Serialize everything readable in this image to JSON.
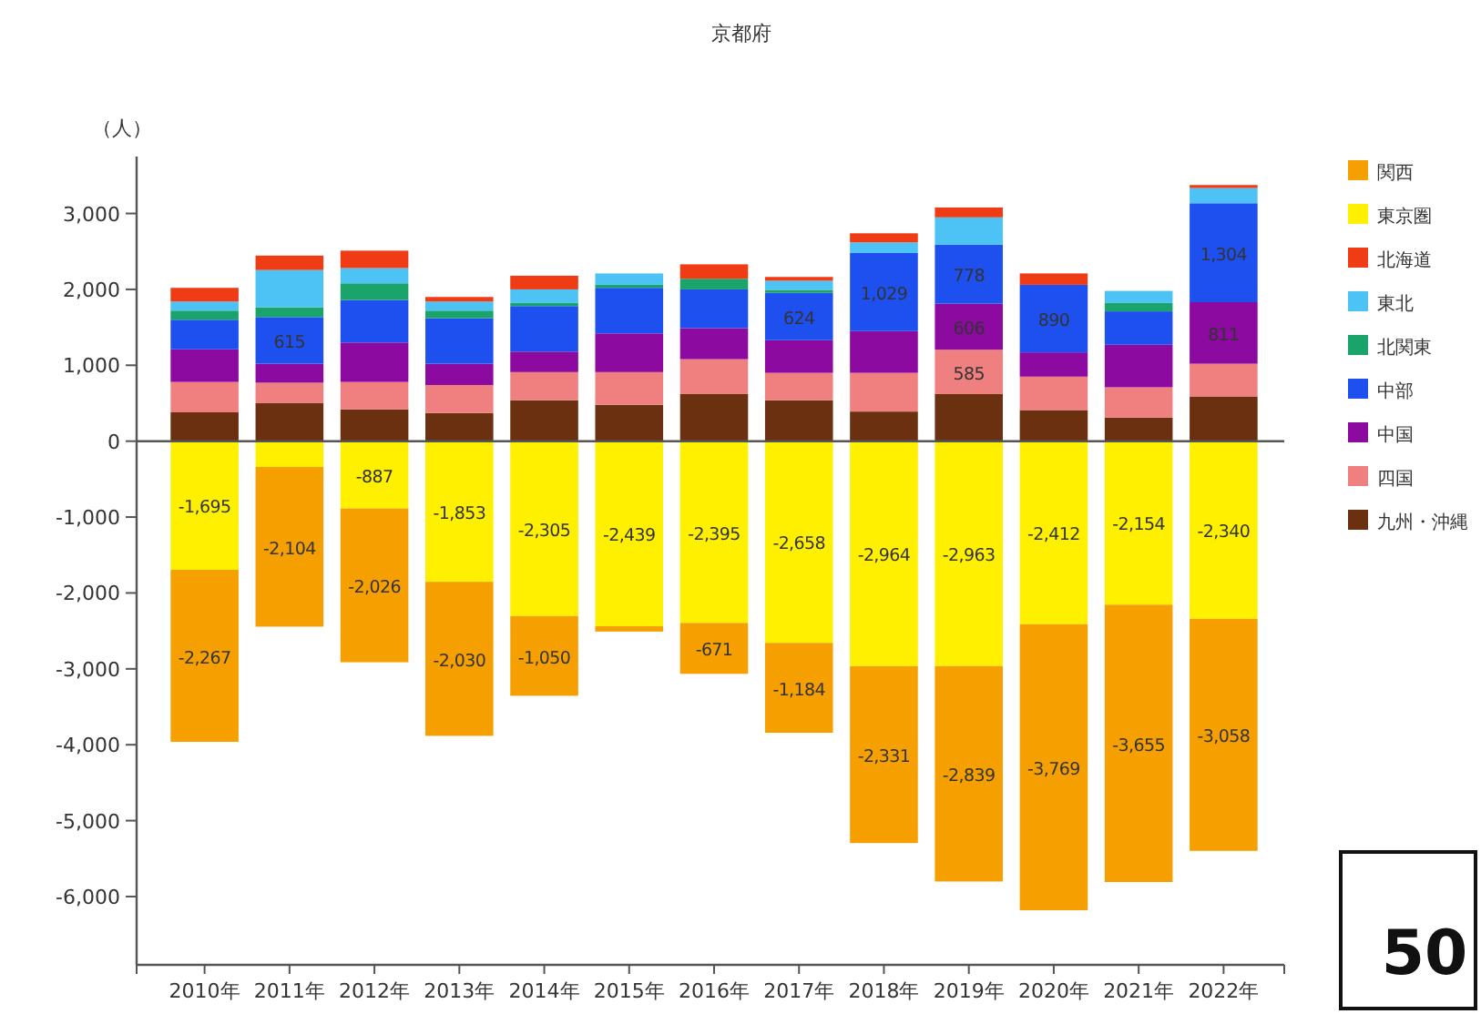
{
  "chart_data": {
    "type": "bar",
    "stacked": true,
    "title": "京都府",
    "ylabel": "（人）",
    "categories": [
      "2010年",
      "2011年",
      "2012年",
      "2013年",
      "2014年",
      "2015年",
      "2016年",
      "2017年",
      "2018年",
      "2019年",
      "2020年",
      "2021年",
      "2022年"
    ],
    "ylim": [
      -6900,
      3750
    ],
    "yticks": [
      {
        "value": -6000,
        "label": "-6,000"
      },
      {
        "value": -5000,
        "label": "-5,000"
      },
      {
        "value": -4000,
        "label": "-4,000"
      },
      {
        "value": -3000,
        "label": "-3,000"
      },
      {
        "value": -2000,
        "label": "-2,000"
      },
      {
        "value": -1000,
        "label": "-1,000"
      },
      0,
      {
        "value": 1000,
        "label": "1,000"
      },
      {
        "value": 2000,
        "label": "2,000"
      },
      {
        "value": 3000,
        "label": "3,000"
      }
    ],
    "ref_lines": [
      {
        "axis": "y",
        "value": 0,
        "color": "#555555"
      }
    ],
    "grid": false,
    "legend": "right",
    "series": [
      {
        "name": "九州・沖縄",
        "color": "#6b3010",
        "values": [
          380,
          500,
          420,
          370,
          540,
          480,
          620,
          540,
          390,
          620,
          410,
          310,
          590
        ]
      },
      {
        "name": "四国",
        "color": "#f08080",
        "values": [
          400,
          270,
          360,
          370,
          370,
          430,
          460,
          360,
          510,
          585,
          440,
          400,
          430
        ],
        "value_labels": [
          null,
          null,
          null,
          null,
          null,
          null,
          null,
          null,
          null,
          "585",
          null,
          null,
          null
        ]
      },
      {
        "name": "中国",
        "color": "#8c0aa0",
        "values": [
          430,
          250,
          520,
          280,
          270,
          510,
          410,
          430,
          550,
          606,
          320,
          560,
          811
        ],
        "value_labels": [
          null,
          null,
          null,
          null,
          null,
          null,
          null,
          null,
          null,
          "606",
          null,
          null,
          "811"
        ]
      },
      {
        "name": "中部",
        "color": "#1e50f0",
        "values": [
          390,
          615,
          560,
          600,
          600,
          600,
          510,
          624,
          1029,
          778,
          890,
          440,
          1304
        ],
        "value_labels": [
          null,
          "615",
          null,
          null,
          null,
          null,
          null,
          "624",
          "1,029",
          "778",
          "890",
          null,
          "1,304"
        ]
      },
      {
        "name": "北関東",
        "color": "#1aa36b",
        "values": [
          120,
          130,
          220,
          100,
          40,
          40,
          140,
          40,
          0,
          0,
          0,
          110,
          null
        ]
      },
      {
        "name": "東北",
        "color": "#4dc3f5",
        "values": [
          120,
          490,
          200,
          120,
          180,
          150,
          0,
          120,
          140,
          360,
          0,
          160,
          200
        ]
      },
      {
        "name": "北海道",
        "color": "#f03c14",
        "values": [
          180,
          190,
          230,
          60,
          180,
          0,
          190,
          50,
          120,
          130,
          150,
          null,
          40
        ]
      },
      {
        "name": "東京圏",
        "color": "#fff000",
        "values": [
          -1695,
          -340,
          -887,
          -1853,
          -2305,
          -2439,
          -2395,
          -2658,
          -2964,
          -2963,
          -2412,
          -2154,
          -2340
        ],
        "value_labels": [
          "-1,695",
          null,
          "-887",
          "-1,853",
          "-2,305",
          "-2,439",
          "-2,395",
          "-2,658",
          "-2,964",
          "-2,963",
          "-2,412",
          "-2,154",
          "-2,340"
        ]
      },
      {
        "name": "関西",
        "color": "#f5a000",
        "values": [
          -2267,
          -2104,
          -2026,
          -2030,
          -1050,
          -70,
          -671,
          -1184,
          -2331,
          -2839,
          -3769,
          -3655,
          -3058
        ],
        "value_labels": [
          "-2,267",
          "-2,104",
          "-2,026",
          "-2,030",
          "-1,050",
          null,
          "-671",
          "-1,184",
          "-2,331",
          "-2,839",
          "-3,769",
          "-3,655",
          "-3,058"
        ]
      }
    ],
    "annotations": [
      "50"
    ]
  }
}
